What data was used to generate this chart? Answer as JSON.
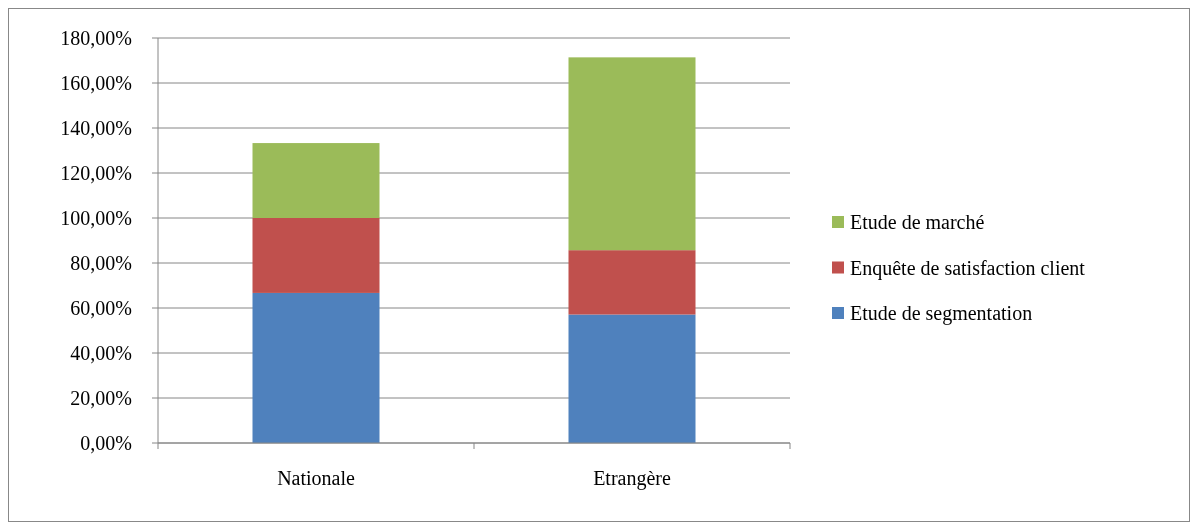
{
  "chart_data": {
    "type": "bar",
    "stacked": true,
    "categories": [
      "Nationale",
      "Etrangère"
    ],
    "series": [
      {
        "name": "Etude de segmentation",
        "color": "#4f81bd",
        "values": [
          66.7,
          57.1
        ]
      },
      {
        "name": "Enquête  de satisfaction client",
        "color": "#c0504d",
        "values": [
          33.3,
          28.6
        ]
      },
      {
        "name": "Etude de marché",
        "color": "#9bbb59",
        "values": [
          33.3,
          85.7
        ]
      }
    ],
    "ylim": [
      0,
      180
    ],
    "yticks": [
      {
        "value": 0,
        "label": "0,00%"
      },
      {
        "value": 20,
        "label": "20,00%"
      },
      {
        "value": 40,
        "label": "40,00%"
      },
      {
        "value": 60,
        "label": "60,00%"
      },
      {
        "value": 80,
        "label": "80,00%"
      },
      {
        "value": 100,
        "label": "100,00%"
      },
      {
        "value": 120,
        "label": "120,00%"
      },
      {
        "value": 140,
        "label": "140,00%"
      },
      {
        "value": 160,
        "label": "160,00%"
      },
      {
        "value": 180,
        "label": "180,00%"
      }
    ],
    "grid": "y",
    "legend": "right"
  }
}
